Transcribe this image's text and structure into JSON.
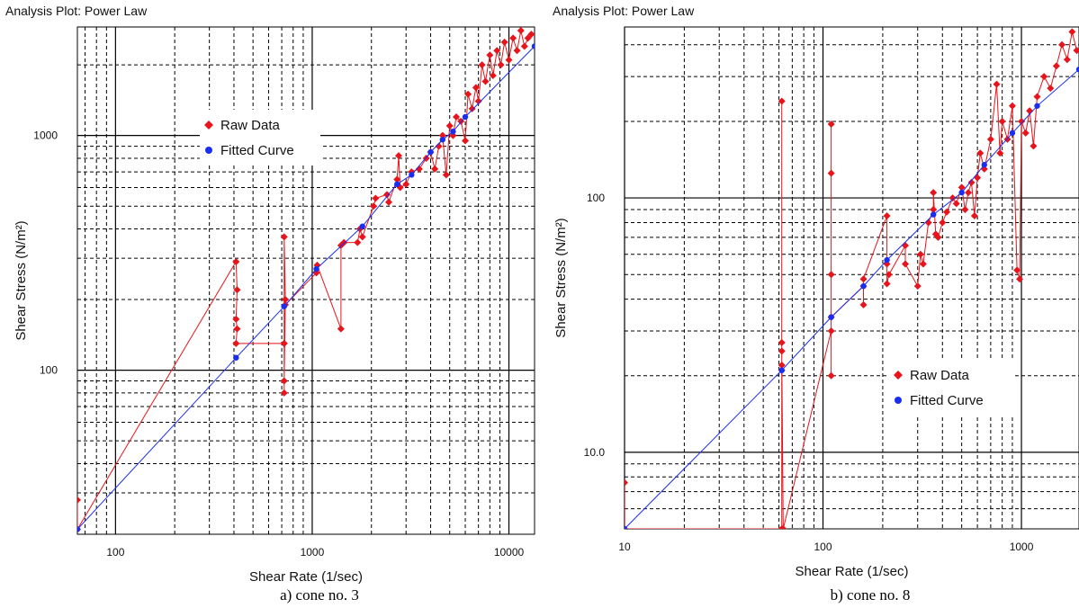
{
  "panels": [
    {
      "title": "Analysis Plot: Power Law",
      "caption": "a) cone no. 3",
      "legend": {
        "raw": "Raw Data",
        "fit": "Fitted Curve"
      }
    },
    {
      "title": "Analysis Plot: Power Law",
      "caption": "b) cone no. 8",
      "legend": {
        "raw": "Raw Data",
        "fit": "Fitted Curve"
      }
    }
  ],
  "colors": {
    "raw": "#e8141b",
    "fit": "#1a2ef0",
    "grid": "#000000"
  },
  "chart_data": [
    {
      "type": "scatter",
      "title": "Analysis Plot: Power Law",
      "xlabel": "Shear Rate (1/sec)",
      "ylabel": "Shear Stress (N/m²)",
      "x_scale": "log",
      "y_scale": "log",
      "xlim": [
        64,
        13500
      ],
      "ylim": [
        20,
        2900
      ],
      "x_ticks": [
        100,
        1000,
        10000
      ],
      "x_tick_labels": [
        "100",
        "1000",
        "10000"
      ],
      "y_ticks": [
        100,
        1000
      ],
      "y_tick_labels": [
        "100",
        "1000"
      ],
      "grid": true,
      "legend_position": "top-center",
      "series": [
        {
          "name": "Raw Data",
          "style": "line+diamond",
          "points": [
            [
              64,
              28
            ],
            [
              64,
              21
            ],
            [
              410,
              290
            ],
            [
              415,
              220
            ],
            [
              410,
              165
            ],
            [
              415,
              150
            ],
            [
              410,
              130
            ],
            [
              720,
              130
            ],
            [
              720,
              370
            ],
            [
              730,
              200
            ],
            [
              720,
              90
            ],
            [
              720,
              80
            ],
            [
              720,
              130
            ],
            [
              730,
              190
            ],
            [
              1050,
              260
            ],
            [
              1060,
              280
            ],
            [
              1400,
              150
            ],
            [
              1400,
              340
            ],
            [
              1450,
              350
            ],
            [
              1700,
              350
            ],
            [
              1750,
              400
            ],
            [
              1800,
              370
            ],
            [
              2050,
              500
            ],
            [
              2100,
              540
            ],
            [
              2400,
              560
            ],
            [
              2450,
              520
            ],
            [
              2700,
              650
            ],
            [
              2750,
              820
            ],
            [
              2800,
              600
            ],
            [
              3000,
              620
            ],
            [
              3200,
              700
            ],
            [
              3500,
              720
            ],
            [
              3800,
              800
            ],
            [
              4000,
              850
            ],
            [
              4200,
              720
            ],
            [
              4400,
              900
            ],
            [
              4600,
              1000
            ],
            [
              4800,
              680
            ],
            [
              5000,
              1100
            ],
            [
              5200,
              1000
            ],
            [
              5400,
              1200
            ],
            [
              5700,
              1150
            ],
            [
              6000,
              950
            ],
            [
              6200,
              1500
            ],
            [
              6500,
              1300
            ],
            [
              6800,
              1600
            ],
            [
              7000,
              1400
            ],
            [
              7300,
              2000
            ],
            [
              7600,
              1700
            ],
            [
              8000,
              2200
            ],
            [
              8300,
              1800
            ],
            [
              8700,
              2300
            ],
            [
              9100,
              2000
            ],
            [
              9500,
              2500
            ],
            [
              10000,
              2100
            ],
            [
              10500,
              2600
            ],
            [
              11000,
              2300
            ],
            [
              11500,
              2800
            ],
            [
              12000,
              2400
            ],
            [
              12500,
              2600
            ],
            [
              13000,
              2700
            ]
          ]
        },
        {
          "name": "Fitted Curve",
          "style": "line+dot",
          "points": [
            [
              64,
              21
            ],
            [
              410,
              113
            ],
            [
              720,
              187
            ],
            [
              1050,
              270
            ],
            [
              1800,
              410
            ],
            [
              2700,
              620
            ],
            [
              3200,
              680
            ],
            [
              4000,
              850
            ],
            [
              4600,
              960
            ],
            [
              5200,
              1040
            ],
            [
              6000,
              1200
            ],
            [
              13500,
              2400
            ]
          ]
        }
      ]
    },
    {
      "type": "scatter",
      "title": "Analysis Plot: Power Law",
      "xlabel": "Shear Rate (1/sec)",
      "ylabel": "Shear Stress (N/m²)",
      "x_scale": "log",
      "y_scale": "log",
      "xlim": [
        10,
        1950
      ],
      "ylim": [
        5,
        470
      ],
      "x_ticks": [
        10,
        100,
        1000
      ],
      "x_tick_labels": [
        "10",
        "100",
        "1000"
      ],
      "y_ticks": [
        10,
        100
      ],
      "y_tick_labels": [
        "10.0",
        "100"
      ],
      "grid": true,
      "legend_position": "bottom-right",
      "series": [
        {
          "name": "Raw Data",
          "style": "line+diamond",
          "points": [
            [
              10,
              7.6
            ],
            [
              10,
              5
            ],
            [
              62,
              5
            ],
            [
              62,
              27
            ],
            [
              62,
              240
            ],
            [
              62,
              22
            ],
            [
              62,
              21
            ],
            [
              62,
              25
            ],
            [
              63,
              5
            ],
            [
              110,
              30
            ],
            [
              110,
              195
            ],
            [
              110,
              125
            ],
            [
              110,
              50
            ],
            [
              110,
              20
            ],
            [
              110,
              34
            ],
            [
              160,
              45
            ],
            [
              160,
              38
            ],
            [
              160,
              48
            ],
            [
              210,
              85
            ],
            [
              210,
              55
            ],
            [
              210,
              46
            ],
            [
              215,
              50
            ],
            [
              260,
              65
            ],
            [
              260,
              55
            ],
            [
              300,
              45
            ],
            [
              310,
              60
            ],
            [
              320,
              55
            ],
            [
              340,
              80
            ],
            [
              360,
              90
            ],
            [
              360,
              105
            ],
            [
              370,
              72
            ],
            [
              380,
              70
            ],
            [
              400,
              80
            ],
            [
              420,
              88
            ],
            [
              450,
              100
            ],
            [
              470,
              95
            ],
            [
              500,
              110
            ],
            [
              520,
              90
            ],
            [
              540,
              105
            ],
            [
              560,
              115
            ],
            [
              580,
              85
            ],
            [
              600,
              120
            ],
            [
              620,
              150
            ],
            [
              650,
              130
            ],
            [
              700,
              170
            ],
            [
              750,
              280
            ],
            [
              780,
              150
            ],
            [
              800,
              200
            ],
            [
              850,
              170
            ],
            [
              900,
              230
            ],
            [
              950,
              52
            ],
            [
              980,
              48
            ],
            [
              1000,
              200
            ],
            [
              1050,
              180
            ],
            [
              1100,
              220
            ],
            [
              1150,
              160
            ],
            [
              1200,
              250
            ],
            [
              1300,
              300
            ],
            [
              1400,
              270
            ],
            [
              1500,
              330
            ],
            [
              1600,
              400
            ],
            [
              1700,
              350
            ],
            [
              1800,
              450
            ],
            [
              1900,
              380
            ]
          ]
        },
        {
          "name": "Fitted Curve",
          "style": "line+dot",
          "points": [
            [
              10,
              5
            ],
            [
              62,
              21
            ],
            [
              110,
              34
            ],
            [
              160,
              45
            ],
            [
              210,
              57
            ],
            [
              360,
              86
            ],
            [
              500,
              105
            ],
            [
              650,
              135
            ],
            [
              900,
              180
            ],
            [
              1200,
              230
            ],
            [
              1950,
              320
            ]
          ]
        }
      ]
    }
  ]
}
